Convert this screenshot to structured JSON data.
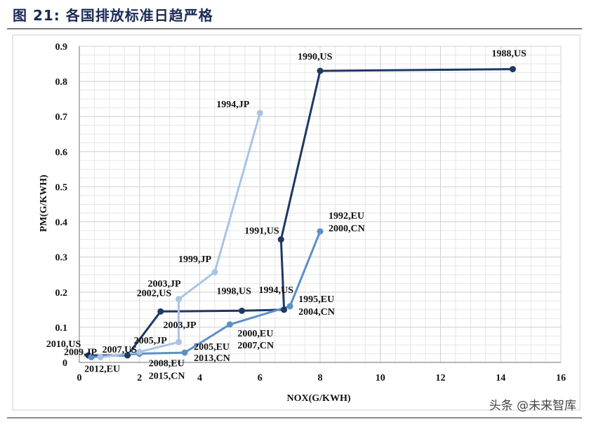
{
  "figure": {
    "title": "图 21: 各国排放标准日趋严格",
    "watermark": "头条 @未来智库"
  },
  "chart_data": {
    "type": "line",
    "xlabel": "NOX(G/KWH)",
    "ylabel": "PM(G/KWH)",
    "xlim": [
      0,
      16
    ],
    "ylim": [
      0,
      0.9
    ],
    "x_ticks": [
      0,
      2,
      4,
      6,
      8,
      10,
      12,
      14,
      16
    ],
    "y_ticks": [
      0,
      0.1,
      0.2,
      0.3,
      0.4,
      0.5,
      0.6,
      0.7,
      0.8,
      0.9
    ],
    "x_tick_labels": [
      "0",
      "2",
      "4",
      "6",
      "8",
      "10",
      "12",
      "14",
      "16"
    ],
    "y_tick_labels": [
      "0",
      "0.1",
      "0.2",
      "0.3",
      "0.4",
      "0.5",
      "0.6",
      "0.7",
      "0.8",
      "0.9"
    ],
    "grid": true,
    "series": [
      {
        "color": "#1f3864",
        "points": [
          {
            "x": 14.4,
            "y": 0.835,
            "label": "1988,US"
          },
          {
            "x": 8.0,
            "y": 0.83,
            "label": "1990,US"
          },
          {
            "x": 6.7,
            "y": 0.35,
            "label": "1991,US"
          },
          {
            "x": 6.8,
            "y": 0.15,
            "label": "1994,US"
          },
          {
            "x": 5.4,
            "y": 0.147,
            "label": "1998,US"
          },
          {
            "x": 2.7,
            "y": 0.145,
            "label": "2002,US"
          },
          {
            "x": 1.6,
            "y": 0.02,
            "label": "2007,US"
          },
          {
            "x": 0.3,
            "y": 0.02,
            "label": "2010,US"
          }
        ]
      },
      {
        "color": "#5b8fc7",
        "points": [
          {
            "x": 8.0,
            "y": 0.373,
            "label": "1992,EU"
          },
          {
            "x": 7.0,
            "y": 0.16,
            "label": "1995,EU"
          },
          {
            "x": 5.0,
            "y": 0.108,
            "label": "2000,EU"
          },
          {
            "x": 3.5,
            "y": 0.028,
            "label": "2005,EU"
          },
          {
            "x": 2.0,
            "y": 0.025,
            "label": "2008,EU"
          },
          {
            "x": 0.4,
            "y": 0.015,
            "label": "2012,EU"
          }
        ]
      },
      {
        "color": "#a9c4e4",
        "points": [
          {
            "x": 6.0,
            "y": 0.71,
            "label": "1994,JP"
          },
          {
            "x": 4.5,
            "y": 0.257,
            "label": "1999,JP"
          },
          {
            "x": 3.3,
            "y": 0.18,
            "label": "2003,JP"
          },
          {
            "x": 3.3,
            "y": 0.058,
            "label": "2003,JP"
          },
          {
            "x": 2.0,
            "y": 0.03,
            "label": "2005,JP"
          },
          {
            "x": 0.7,
            "y": 0.015,
            "label": "2009,JP"
          }
        ]
      }
    ],
    "extra_labels": [
      {
        "text": "2000,CN",
        "x": 8.0,
        "y": 0.373
      },
      {
        "text": "2004,CN",
        "x": 7.0,
        "y": 0.16
      },
      {
        "text": "2007,CN",
        "x": 5.0,
        "y": 0.108
      },
      {
        "text": "2013,CN",
        "x": 3.5,
        "y": 0.028
      },
      {
        "text": "2015,CN",
        "x": 2.0,
        "y": 0.025
      }
    ]
  }
}
